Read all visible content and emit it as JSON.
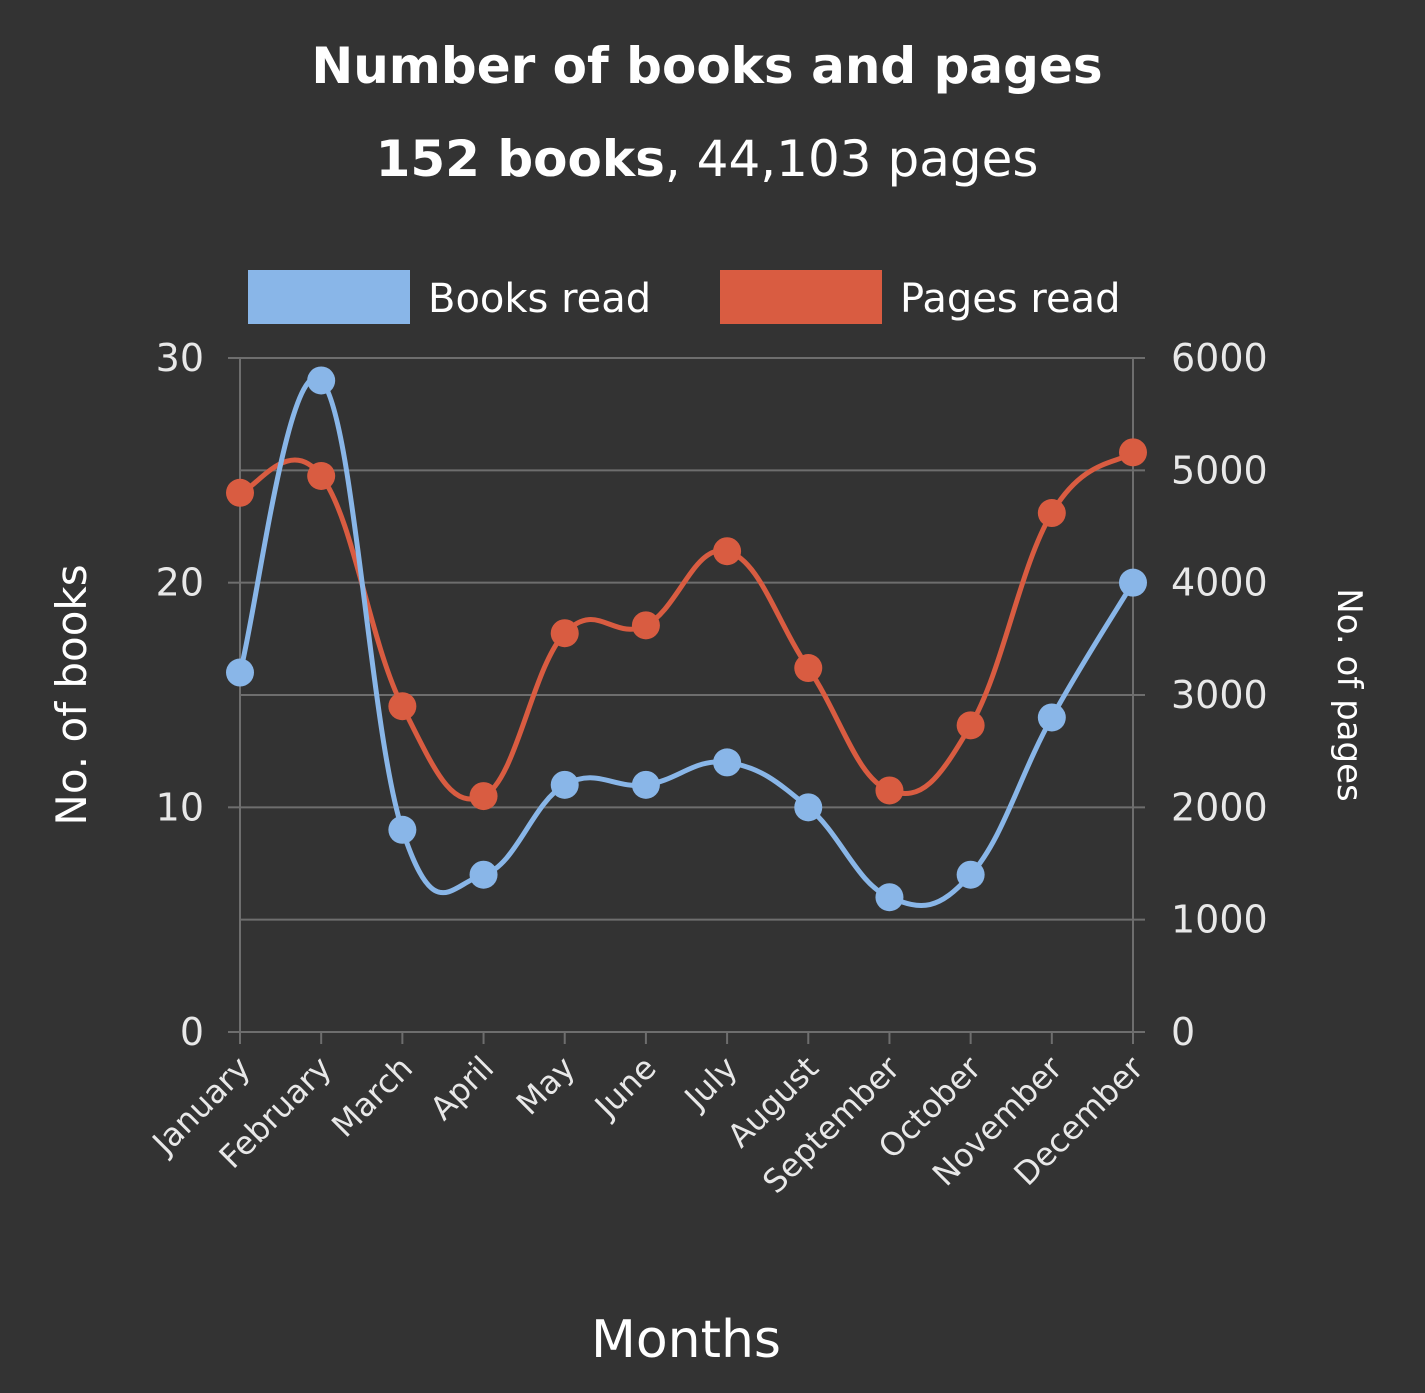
{
  "chart_data": {
    "type": "line",
    "title": "Number of books and pages",
    "subtitle_bold": "152 books",
    "subtitle_rest": ", 44,103 pages",
    "xlabel": "Months",
    "ylabel": "No. of books",
    "y2label": "No. of pages",
    "ylim": [
      0,
      30
    ],
    "y2lim": [
      0,
      6000
    ],
    "yticks": [
      0,
      10,
      20,
      30
    ],
    "y2ticks": [
      0,
      1000,
      2000,
      3000,
      4000,
      5000,
      6000
    ],
    "grid": true,
    "legend_position": "top",
    "categories": [
      "January",
      "February",
      "March",
      "April",
      "May",
      "June",
      "July",
      "August",
      "September",
      "October",
      "November",
      "December"
    ],
    "series": [
      {
        "name": "Books read",
        "axis": "left",
        "color": "#89b6e8",
        "values": [
          16,
          29,
          9,
          7,
          11,
          11,
          12,
          10,
          6,
          7,
          14,
          20
        ]
      },
      {
        "name": "Pages read",
        "axis": "right",
        "color": "#d95c41",
        "values": [
          4800,
          4950,
          2900,
          2100,
          3550,
          3620,
          4280,
          3240,
          2150,
          2730,
          4620,
          5160
        ]
      }
    ]
  }
}
